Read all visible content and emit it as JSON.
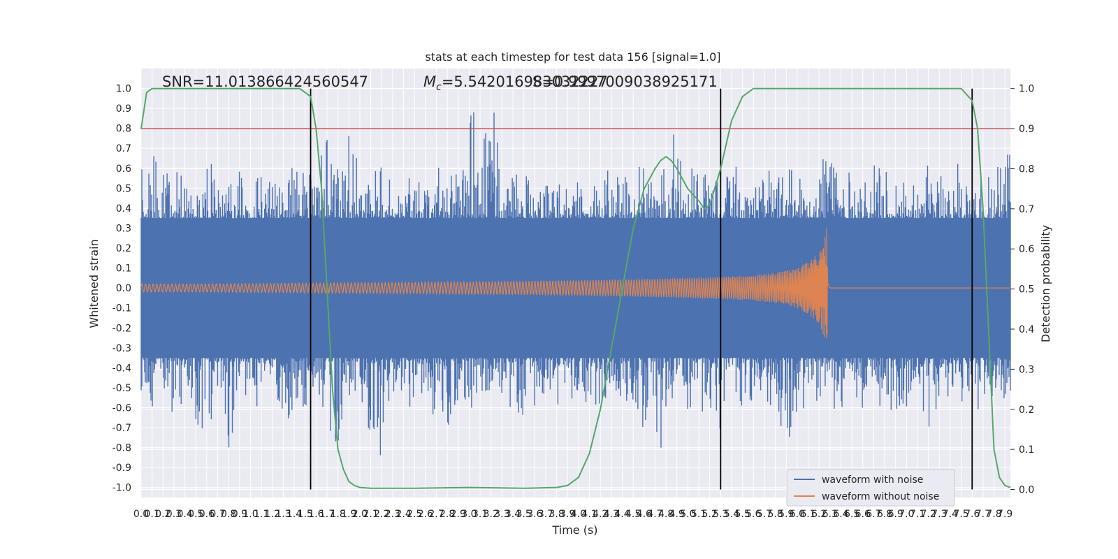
{
  "chart_data": {
    "type": "line",
    "title": "stats at each timestep for test data 156 [signal=1.0]",
    "xlabel": "Time (s)",
    "ylabel": "Whitened strain",
    "ylabel_right": "Detection probability",
    "xlim": [
      0.0,
      7.95
    ],
    "ylim": [
      -1.05,
      1.1
    ],
    "ylim_right": [
      -0.02,
      1.05
    ],
    "x_ticks": [
      "0.0",
      "0.1",
      "0.2",
      "0.3",
      "0.4",
      "0.5",
      "0.6",
      "0.7",
      "0.8",
      "0.9",
      "1.0",
      "1.1",
      "1.2",
      "1.3",
      "1.4",
      "1.5",
      "1.6",
      "1.7",
      "1.8",
      "1.9",
      "2.0",
      "2.1",
      "2.2",
      "2.3",
      "2.4",
      "2.5",
      "2.6",
      "2.7",
      "2.8",
      "2.9",
      "3.0",
      "3.1",
      "3.2",
      "3.3",
      "3.4",
      "3.5",
      "3.6",
      "3.7",
      "3.8",
      "3.9",
      "4.0",
      "4.1",
      "4.2",
      "4.3",
      "4.4",
      "4.5",
      "4.6",
      "4.7",
      "4.8",
      "4.9",
      "5.0",
      "5.1",
      "5.2",
      "5.3",
      "5.4",
      "5.5",
      "5.6",
      "5.7",
      "5.8",
      "5.9",
      "6.0",
      "6.1",
      "6.2",
      "6.3",
      "6.4",
      "6.5",
      "6.6",
      "6.7",
      "6.8",
      "6.9",
      "7.0",
      "7.1",
      "7.2",
      "7.3",
      "7.4",
      "7.5",
      "7.6",
      "7.7",
      "7.8",
      "7.9"
    ],
    "y_ticks": [
      "-1.0",
      "-0.9",
      "-0.8",
      "-0.7",
      "-0.6",
      "-0.5",
      "-0.4",
      "-0.3",
      "-0.2",
      "-0.1",
      "0.0",
      "0.1",
      "0.2",
      "0.3",
      "0.4",
      "0.5",
      "0.6",
      "0.7",
      "0.8",
      "0.9",
      "1.0"
    ],
    "y_ticks_right": [
      "0.0",
      "0.1",
      "0.2",
      "0.3",
      "0.4",
      "0.5",
      "0.6",
      "0.7",
      "0.8",
      "0.9",
      "1.0"
    ],
    "grid": true,
    "legend_position": "lower-right",
    "annotations": {
      "snr": "SNR=11.013866424560547",
      "mc_symbol": "M",
      "mc_subscript": "c",
      "mc_value": "=5.542016983032227",
      "overlap": "S=0.9997009038925171"
    },
    "threshold_line": {
      "y_right": 0.9,
      "color": "#c44e52"
    },
    "vertical_markers_x": [
      1.55,
      5.3,
      7.6
    ],
    "series": [
      {
        "name": "waveform with noise",
        "color": "#4c72b0",
        "description_stats": {
          "typical_amplitude": 0.35,
          "max_abs": 1.0
        },
        "x": [
          0.0,
          0.1,
          0.2,
          0.3,
          0.4,
          0.5,
          0.6,
          0.7,
          0.8,
          0.9,
          1.0,
          1.1,
          1.2,
          1.3,
          1.4,
          1.5,
          1.6,
          1.7,
          1.8,
          1.9,
          2.0,
          2.1,
          2.2,
          2.3,
          2.4,
          2.5,
          2.6,
          2.7,
          2.8,
          2.9,
          3.0,
          3.1,
          3.2,
          3.3,
          3.4,
          3.5,
          3.6,
          3.7,
          3.8,
          3.9,
          4.0,
          4.1,
          4.2,
          4.3,
          4.4,
          4.5,
          4.6,
          4.7,
          4.8,
          4.9,
          5.0,
          5.1,
          5.2,
          5.3,
          5.4,
          5.5,
          5.6,
          5.7,
          5.8,
          5.9,
          6.0,
          6.1,
          6.2,
          6.3,
          6.4,
          6.5,
          6.6,
          6.7,
          6.8,
          6.9,
          7.0,
          7.1,
          7.2,
          7.3,
          7.4,
          7.5,
          7.6,
          7.7,
          7.8,
          7.9
        ],
        "y_max": [
          0.6,
          0.67,
          0.63,
          0.6,
          0.55,
          0.52,
          0.7,
          0.55,
          0.68,
          0.6,
          0.55,
          0.6,
          0.52,
          0.54,
          0.65,
          0.66,
          0.55,
          0.85,
          0.6,
          0.86,
          0.62,
          0.55,
          0.7,
          0.6,
          0.58,
          0.55,
          0.6,
          0.62,
          0.58,
          0.58,
          1.0,
          0.75,
          1.0,
          0.6,
          0.58,
          0.66,
          0.55,
          0.6,
          0.54,
          0.58,
          0.55,
          0.6,
          0.58,
          0.62,
          0.55,
          0.6,
          0.62,
          0.85,
          0.6,
          0.86,
          0.6,
          0.6,
          0.55,
          0.56,
          0.6,
          0.62,
          0.55,
          0.58,
          0.6,
          0.6,
          0.58,
          0.6,
          0.6,
          1.0,
          0.6,
          0.58,
          0.55,
          0.62,
          0.6,
          0.58,
          0.6,
          0.55,
          0.62,
          0.58,
          0.6,
          0.65,
          0.55,
          0.6,
          0.58,
          0.83
        ],
        "y_min": [
          -0.6,
          -0.67,
          -0.58,
          -0.65,
          -0.55,
          -0.68,
          -0.8,
          -0.62,
          -0.84,
          -0.6,
          -0.58,
          -0.62,
          -0.55,
          -0.7,
          -0.66,
          -0.6,
          -0.58,
          -0.7,
          -0.81,
          -0.62,
          -0.6,
          -0.75,
          -0.88,
          -0.6,
          -0.62,
          -0.58,
          -0.6,
          -0.65,
          -0.7,
          -0.6,
          -0.62,
          -0.6,
          -0.58,
          -0.6,
          -0.62,
          -0.65,
          -0.6,
          -0.58,
          -0.6,
          -0.62,
          -0.58,
          -0.6,
          -0.62,
          -0.6,
          -0.65,
          -0.58,
          -0.75,
          -0.8,
          -0.85,
          -0.6,
          -0.62,
          -0.58,
          -0.7,
          -0.75,
          -0.6,
          -0.62,
          -0.6,
          -0.58,
          -0.6,
          -0.88,
          -0.62,
          -0.6,
          -0.58,
          -0.6,
          -0.62,
          -0.8,
          -0.6,
          -0.58,
          -0.6,
          -0.62,
          -0.6,
          -0.58,
          -0.72,
          -0.6,
          -0.62,
          -0.58,
          -0.6,
          -0.62,
          -0.6,
          -0.58
        ]
      },
      {
        "name": "waveform without noise",
        "color": "#dd8452",
        "x": [
          0.0,
          0.5,
          1.0,
          1.5,
          2.0,
          2.5,
          3.0,
          3.5,
          4.0,
          4.5,
          5.0,
          5.5,
          5.8,
          6.0,
          6.1,
          6.2,
          6.25,
          6.27,
          6.3,
          7.0,
          7.95
        ],
        "amplitude": [
          0.02,
          0.02,
          0.022,
          0.024,
          0.026,
          0.028,
          0.031,
          0.034,
          0.038,
          0.043,
          0.05,
          0.06,
          0.075,
          0.1,
          0.13,
          0.18,
          0.25,
          0.31,
          0.0,
          0.0,
          0.0
        ]
      },
      {
        "name": "detection probability",
        "color": "#55a868",
        "axis": "right",
        "x": [
          0.0,
          0.05,
          0.1,
          0.2,
          0.4,
          0.8,
          1.2,
          1.45,
          1.55,
          1.6,
          1.65,
          1.7,
          1.75,
          1.8,
          1.85,
          1.9,
          1.95,
          2.0,
          2.1,
          2.2,
          2.5,
          3.0,
          3.5,
          3.8,
          3.9,
          4.0,
          4.1,
          4.2,
          4.3,
          4.4,
          4.5,
          4.6,
          4.7,
          4.75,
          4.8,
          4.85,
          4.9,
          5.0,
          5.1,
          5.15,
          5.2,
          5.3,
          5.35,
          5.4,
          5.5,
          5.6,
          5.8,
          6.2,
          7.0,
          7.5,
          7.6,
          7.65,
          7.7,
          7.75,
          7.8,
          7.85,
          7.9,
          7.95
        ],
        "y": [
          0.9,
          0.99,
          1.0,
          1.0,
          1.0,
          1.0,
          1.0,
          1.0,
          0.98,
          0.9,
          0.75,
          0.5,
          0.25,
          0.1,
          0.05,
          0.02,
          0.01,
          0.005,
          0.003,
          0.003,
          0.003,
          0.005,
          0.003,
          0.005,
          0.01,
          0.03,
          0.09,
          0.2,
          0.35,
          0.5,
          0.65,
          0.75,
          0.8,
          0.82,
          0.83,
          0.82,
          0.8,
          0.75,
          0.72,
          0.7,
          0.71,
          0.8,
          0.86,
          0.92,
          0.98,
          1.0,
          1.0,
          1.0,
          1.0,
          1.0,
          0.97,
          0.9,
          0.7,
          0.4,
          0.1,
          0.03,
          0.01,
          0.005
        ]
      }
    ]
  }
}
